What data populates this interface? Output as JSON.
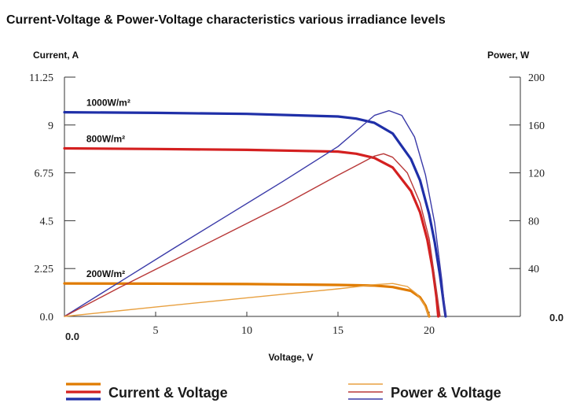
{
  "chart_data": {
    "type": "line",
    "title": "Current-Voltage & Power-Voltage characteristics various irradiance levels",
    "xlabel": "Voltage, V",
    "ylabel_left": "Current, A",
    "ylabel_right": "Power, W",
    "xlim": [
      0,
      25
    ],
    "ylim_left": [
      0,
      11.25
    ],
    "ylim_right": [
      0,
      200
    ],
    "x_ticks": [
      "5",
      "10",
      "15",
      "20"
    ],
    "x_tick_values": [
      5,
      10,
      15,
      20
    ],
    "x_origin_label": "0.0",
    "y_left_ticks": [
      "0.0",
      "2.25",
      "4.5",
      "6.75",
      "9",
      "11.25"
    ],
    "y_left_tick_values": [
      0,
      2.25,
      4.5,
      6.75,
      9,
      11.25
    ],
    "y_right_ticks": [
      "40",
      "80",
      "120",
      "160",
      "200"
    ],
    "y_right_tick_values": [
      40,
      80,
      120,
      160,
      200
    ],
    "y_right_origin_label": "0.0",
    "grid": false,
    "legend_position": "bottom",
    "legend": [
      {
        "label": "Current & Voltage",
        "colors": [
          "#e07b00",
          "#d42020",
          "#1f2fa8"
        ]
      },
      {
        "label": "Power & Voltage",
        "colors": [
          "#e8a040",
          "#b83838",
          "#3a3aa8"
        ]
      }
    ],
    "series": [
      {
        "name": "1000W/m²",
        "kind": "current",
        "axis": "left",
        "color": "#1f2fa8",
        "x": [
          0,
          5,
          10,
          15,
          16,
          17,
          18,
          19,
          19.5,
          20,
          20.3,
          20.6,
          20.8,
          20.9
        ],
        "y": [
          9.6,
          9.57,
          9.52,
          9.4,
          9.3,
          9.1,
          8.6,
          7.4,
          6.4,
          4.8,
          3.5,
          1.9,
          0.6,
          0
        ]
      },
      {
        "name": "800W/m²",
        "kind": "current",
        "axis": "left",
        "color": "#d42020",
        "x": [
          0,
          5,
          10,
          15,
          16,
          17,
          18,
          19,
          19.5,
          19.9,
          20.2,
          20.4,
          20.5
        ],
        "y": [
          7.9,
          7.87,
          7.83,
          7.75,
          7.65,
          7.45,
          7.0,
          5.9,
          4.9,
          3.6,
          2.2,
          0.9,
          0
        ]
      },
      {
        "name": "200W/m²",
        "kind": "current",
        "axis": "left",
        "color": "#e07b00",
        "x": [
          0,
          5,
          10,
          15,
          17,
          18,
          19,
          19.5,
          19.8,
          20
        ],
        "y": [
          1.55,
          1.54,
          1.52,
          1.48,
          1.45,
          1.38,
          1.2,
          0.9,
          0.5,
          0
        ]
      },
      {
        "name": "",
        "kind": "power",
        "axis": "right",
        "color": "#3a3aa8",
        "x": [
          0,
          3,
          6,
          9,
          12,
          15,
          16,
          17,
          17.8,
          18.5,
          19.2,
          19.8,
          20.3,
          20.7,
          20.9
        ],
        "y": [
          0,
          28.5,
          57,
          85,
          113,
          142,
          155,
          168,
          172,
          168,
          150,
          118,
          78,
          30,
          0
        ]
      },
      {
        "name": "",
        "kind": "power",
        "axis": "right",
        "color": "#b83838",
        "x": [
          0,
          3,
          6,
          9,
          12,
          15,
          16,
          17,
          17.5,
          18,
          18.8,
          19.5,
          20,
          20.4,
          20.6
        ],
        "y": [
          0,
          24,
          47,
          70,
          93,
          118,
          126,
          134,
          136,
          133,
          120,
          95,
          65,
          22,
          0
        ]
      },
      {
        "name": "",
        "kind": "power",
        "axis": "right",
        "color": "#e8a040",
        "x": [
          0,
          5,
          10,
          15,
          17,
          18,
          18.8,
          19.3,
          19.7,
          20
        ],
        "y": [
          0,
          7.8,
          15.5,
          23,
          26.5,
          27.5,
          25,
          19,
          11,
          0
        ]
      }
    ]
  }
}
